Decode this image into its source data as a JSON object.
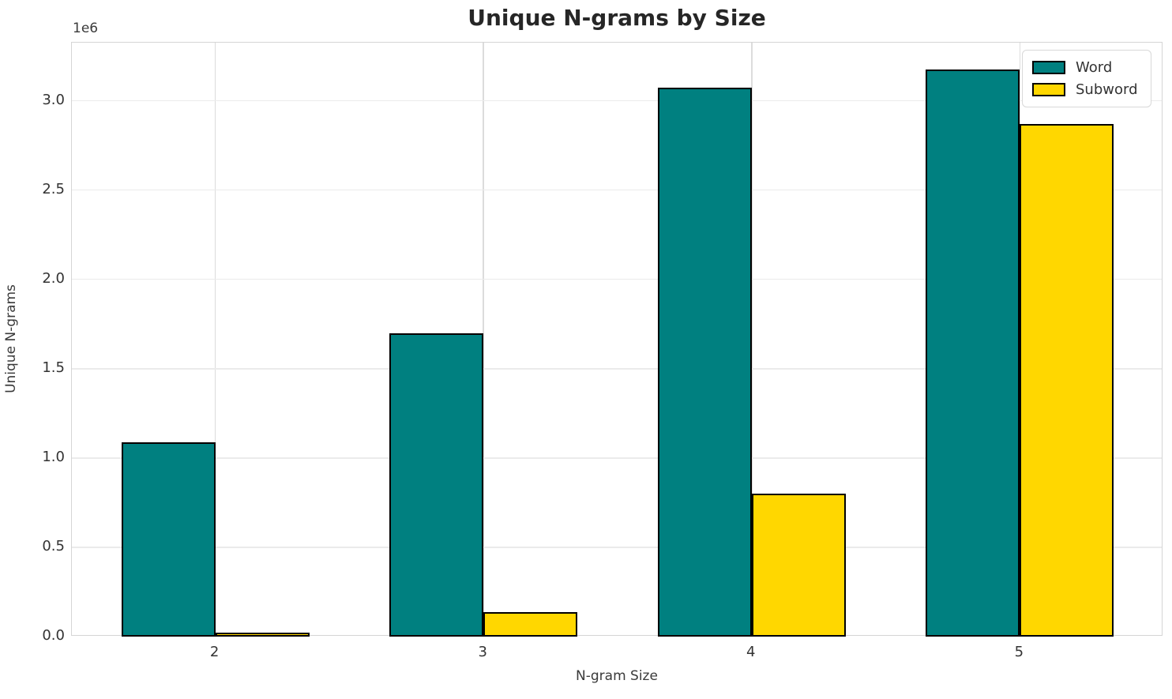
{
  "chart_data": {
    "type": "bar",
    "title": "Unique N-grams by Size",
    "xlabel": "N-gram Size",
    "ylabel": "Unique N-grams",
    "y_offset_text": "1e6",
    "categories": [
      "2",
      "3",
      "4",
      "5"
    ],
    "series": [
      {
        "name": "Word",
        "color": "#008080",
        "values": [
          1080000,
          1690000,
          3065000,
          3165000
        ]
      },
      {
        "name": "Subword",
        "color": "#FFD700",
        "values": [
          12000,
          130000,
          790000,
          2860000
        ]
      }
    ],
    "bar_edge_color": "#000000",
    "bar_width_units": 0.35,
    "bar_offsets_units": [
      -0.175,
      0.175
    ],
    "xlim": [
      -0.535,
      3.535
    ],
    "ylim": [
      0,
      3325000
    ],
    "yticks": [
      0,
      500000,
      1000000,
      1500000,
      2000000,
      2500000,
      3000000
    ],
    "ytick_labels": [
      "0.0",
      "0.5",
      "1.0",
      "1.5",
      "2.0",
      "2.5",
      "3.0"
    ],
    "grid": true,
    "legend_position": "upper right"
  },
  "colors": {
    "hgrid": "#ebebeb",
    "vgrid": "#dcdcdc",
    "spine": "#d5d5d5",
    "text": "#333333",
    "title_text": "#262626",
    "background": "#ffffff"
  }
}
